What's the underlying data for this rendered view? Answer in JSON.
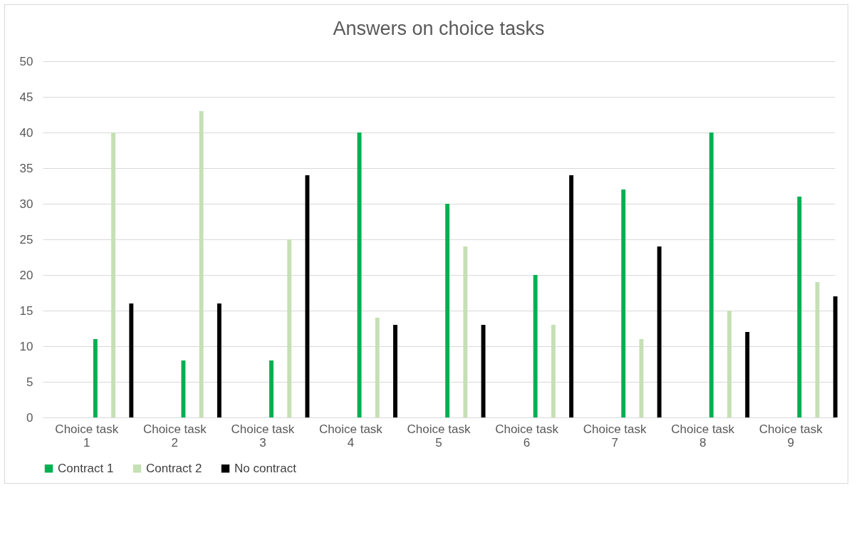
{
  "chart_data": {
    "type": "bar",
    "title": "Answers on choice tasks",
    "categories": [
      "Choice task 1",
      "Choice task 2",
      "Choice task 3",
      "Choice task 4",
      "Choice task 5",
      "Choice task 6",
      "Choice task 7",
      "Choice task 8",
      "Choice task 9"
    ],
    "series": [
      {
        "name": "Contract 1",
        "color": "#00b050",
        "values": [
          11,
          8,
          8,
          40,
          30,
          20,
          32,
          40,
          31
        ]
      },
      {
        "name": "Contract 2",
        "color": "#c5e0b4",
        "values": [
          40,
          43,
          25,
          14,
          24,
          13,
          11,
          15,
          19
        ]
      },
      {
        "name": "No contract",
        "color": "#000000",
        "values": [
          16,
          16,
          34,
          13,
          13,
          34,
          24,
          12,
          17
        ]
      }
    ],
    "ylim": [
      0,
      50
    ],
    "yticks": [
      0,
      5,
      10,
      15,
      20,
      25,
      30,
      35,
      40,
      45,
      50
    ],
    "grid": "y",
    "legend": "bottom"
  }
}
